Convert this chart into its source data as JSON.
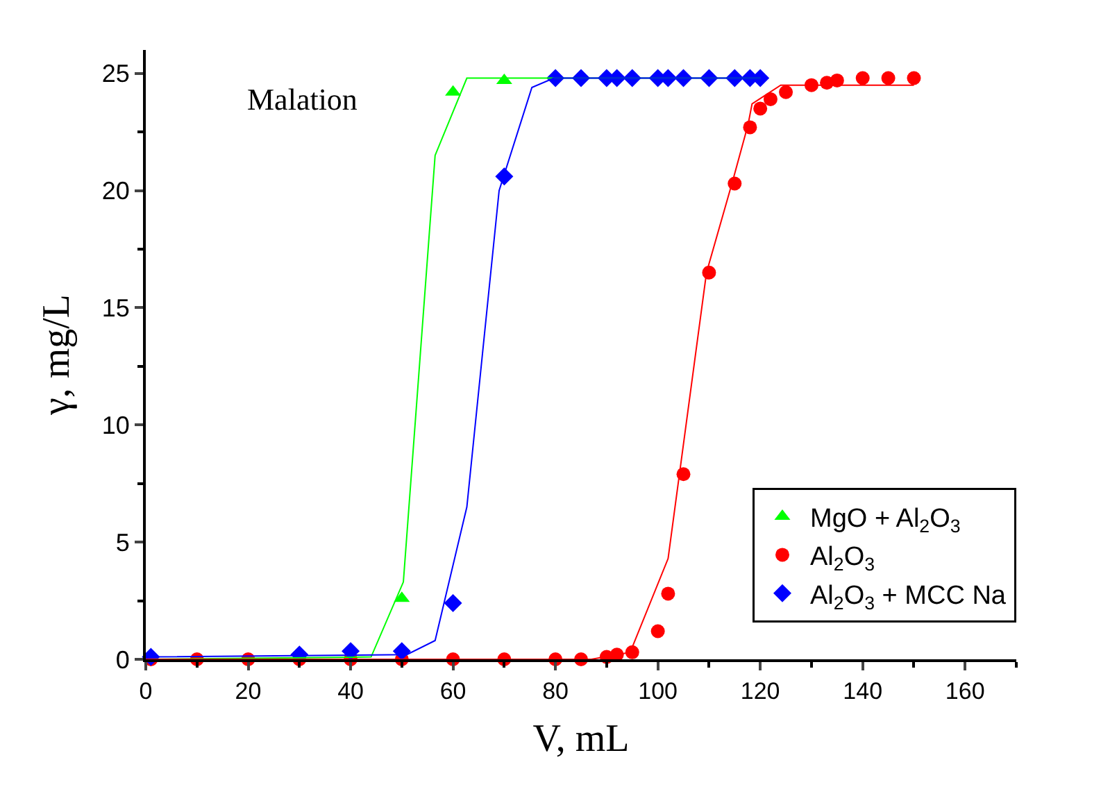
{
  "chart_data": {
    "type": "scatter",
    "xlabel": "V, mL",
    "ylabel": "γ, mg/L",
    "annotations": [
      "Malation"
    ],
    "xlim": [
      0,
      170
    ],
    "xticks": [
      0,
      20,
      40,
      60,
      80,
      100,
      120,
      140,
      160
    ],
    "ylim": [
      0,
      26
    ],
    "yticks": [
      0,
      5,
      10,
      15,
      20,
      25
    ],
    "legend": "bottom right",
    "series": [
      {
        "name": "MgO + Al$_{2}$O$_{3}$",
        "color": "#00ff00",
        "marker": "triangle",
        "x": [
          50,
          60,
          70
        ],
        "values": [
          2.6,
          24.2,
          24.7
        ]
      },
      {
        "name": "Al$_{2}$O$_{3}$",
        "color": "#ff0000",
        "marker": "circle",
        "x": [
          1,
          10,
          20,
          30,
          40,
          50,
          60,
          70,
          80,
          85,
          90,
          92,
          95,
          100,
          102,
          105,
          110,
          115,
          118,
          120,
          122,
          125,
          130,
          133,
          135,
          140,
          145,
          150
        ],
        "values": [
          0,
          0,
          0,
          0,
          0,
          0,
          0,
          0,
          0,
          0,
          0.1,
          0.2,
          0.3,
          1.2,
          2.8,
          7.9,
          16.5,
          20.3,
          22.7,
          23.5,
          23.9,
          24.2,
          24.5,
          24.6,
          24.7,
          24.8,
          24.8,
          24.8
        ]
      },
      {
        "name": "Al$_{2}$O$_{3}$ + MCC Na",
        "color": "#0000ff",
        "marker": "diamond",
        "x": [
          1,
          10,
          20,
          30,
          40,
          50,
          60,
          70,
          80,
          85,
          90,
          92,
          95,
          100,
          102,
          105,
          110,
          115,
          118,
          120
        ],
        "values": [
          0.1,
          null,
          null,
          0.2,
          0.35,
          0.35,
          2.4,
          20.6,
          24.8,
          24.8,
          24.8,
          24.8,
          24.8,
          24.8,
          24.8,
          24.8,
          24.8,
          24.8,
          24.8,
          24.8
        ]
      },
      {
        "type": "line",
        "color": "#00ff00",
        "marker": "none",
        "x": [
          0,
          44,
          50.3,
          56.5,
          62.7,
          120
        ],
        "values": [
          0,
          0.1,
          3.3,
          21.5,
          24.8,
          24.8
        ]
      },
      {
        "type": "line",
        "color": "#0000ff",
        "marker": "none",
        "x": [
          0,
          51,
          56.5,
          62.7,
          69,
          75.4,
          79.7,
          120
        ],
        "values": [
          0.1,
          0.2,
          0.8,
          6.5,
          20,
          24.4,
          24.8,
          24.8
        ]
      },
      {
        "type": "line",
        "color": "#ff0000",
        "marker": "none",
        "x": [
          0,
          87,
          94.6,
          102,
          109.5,
          114.6,
          117.6,
          118.4,
          124,
          150
        ],
        "values": [
          0,
          0,
          0.3,
          4.3,
          16.5,
          20.4,
          22.8,
          23.7,
          24.5,
          24.5
        ]
      }
    ]
  }
}
